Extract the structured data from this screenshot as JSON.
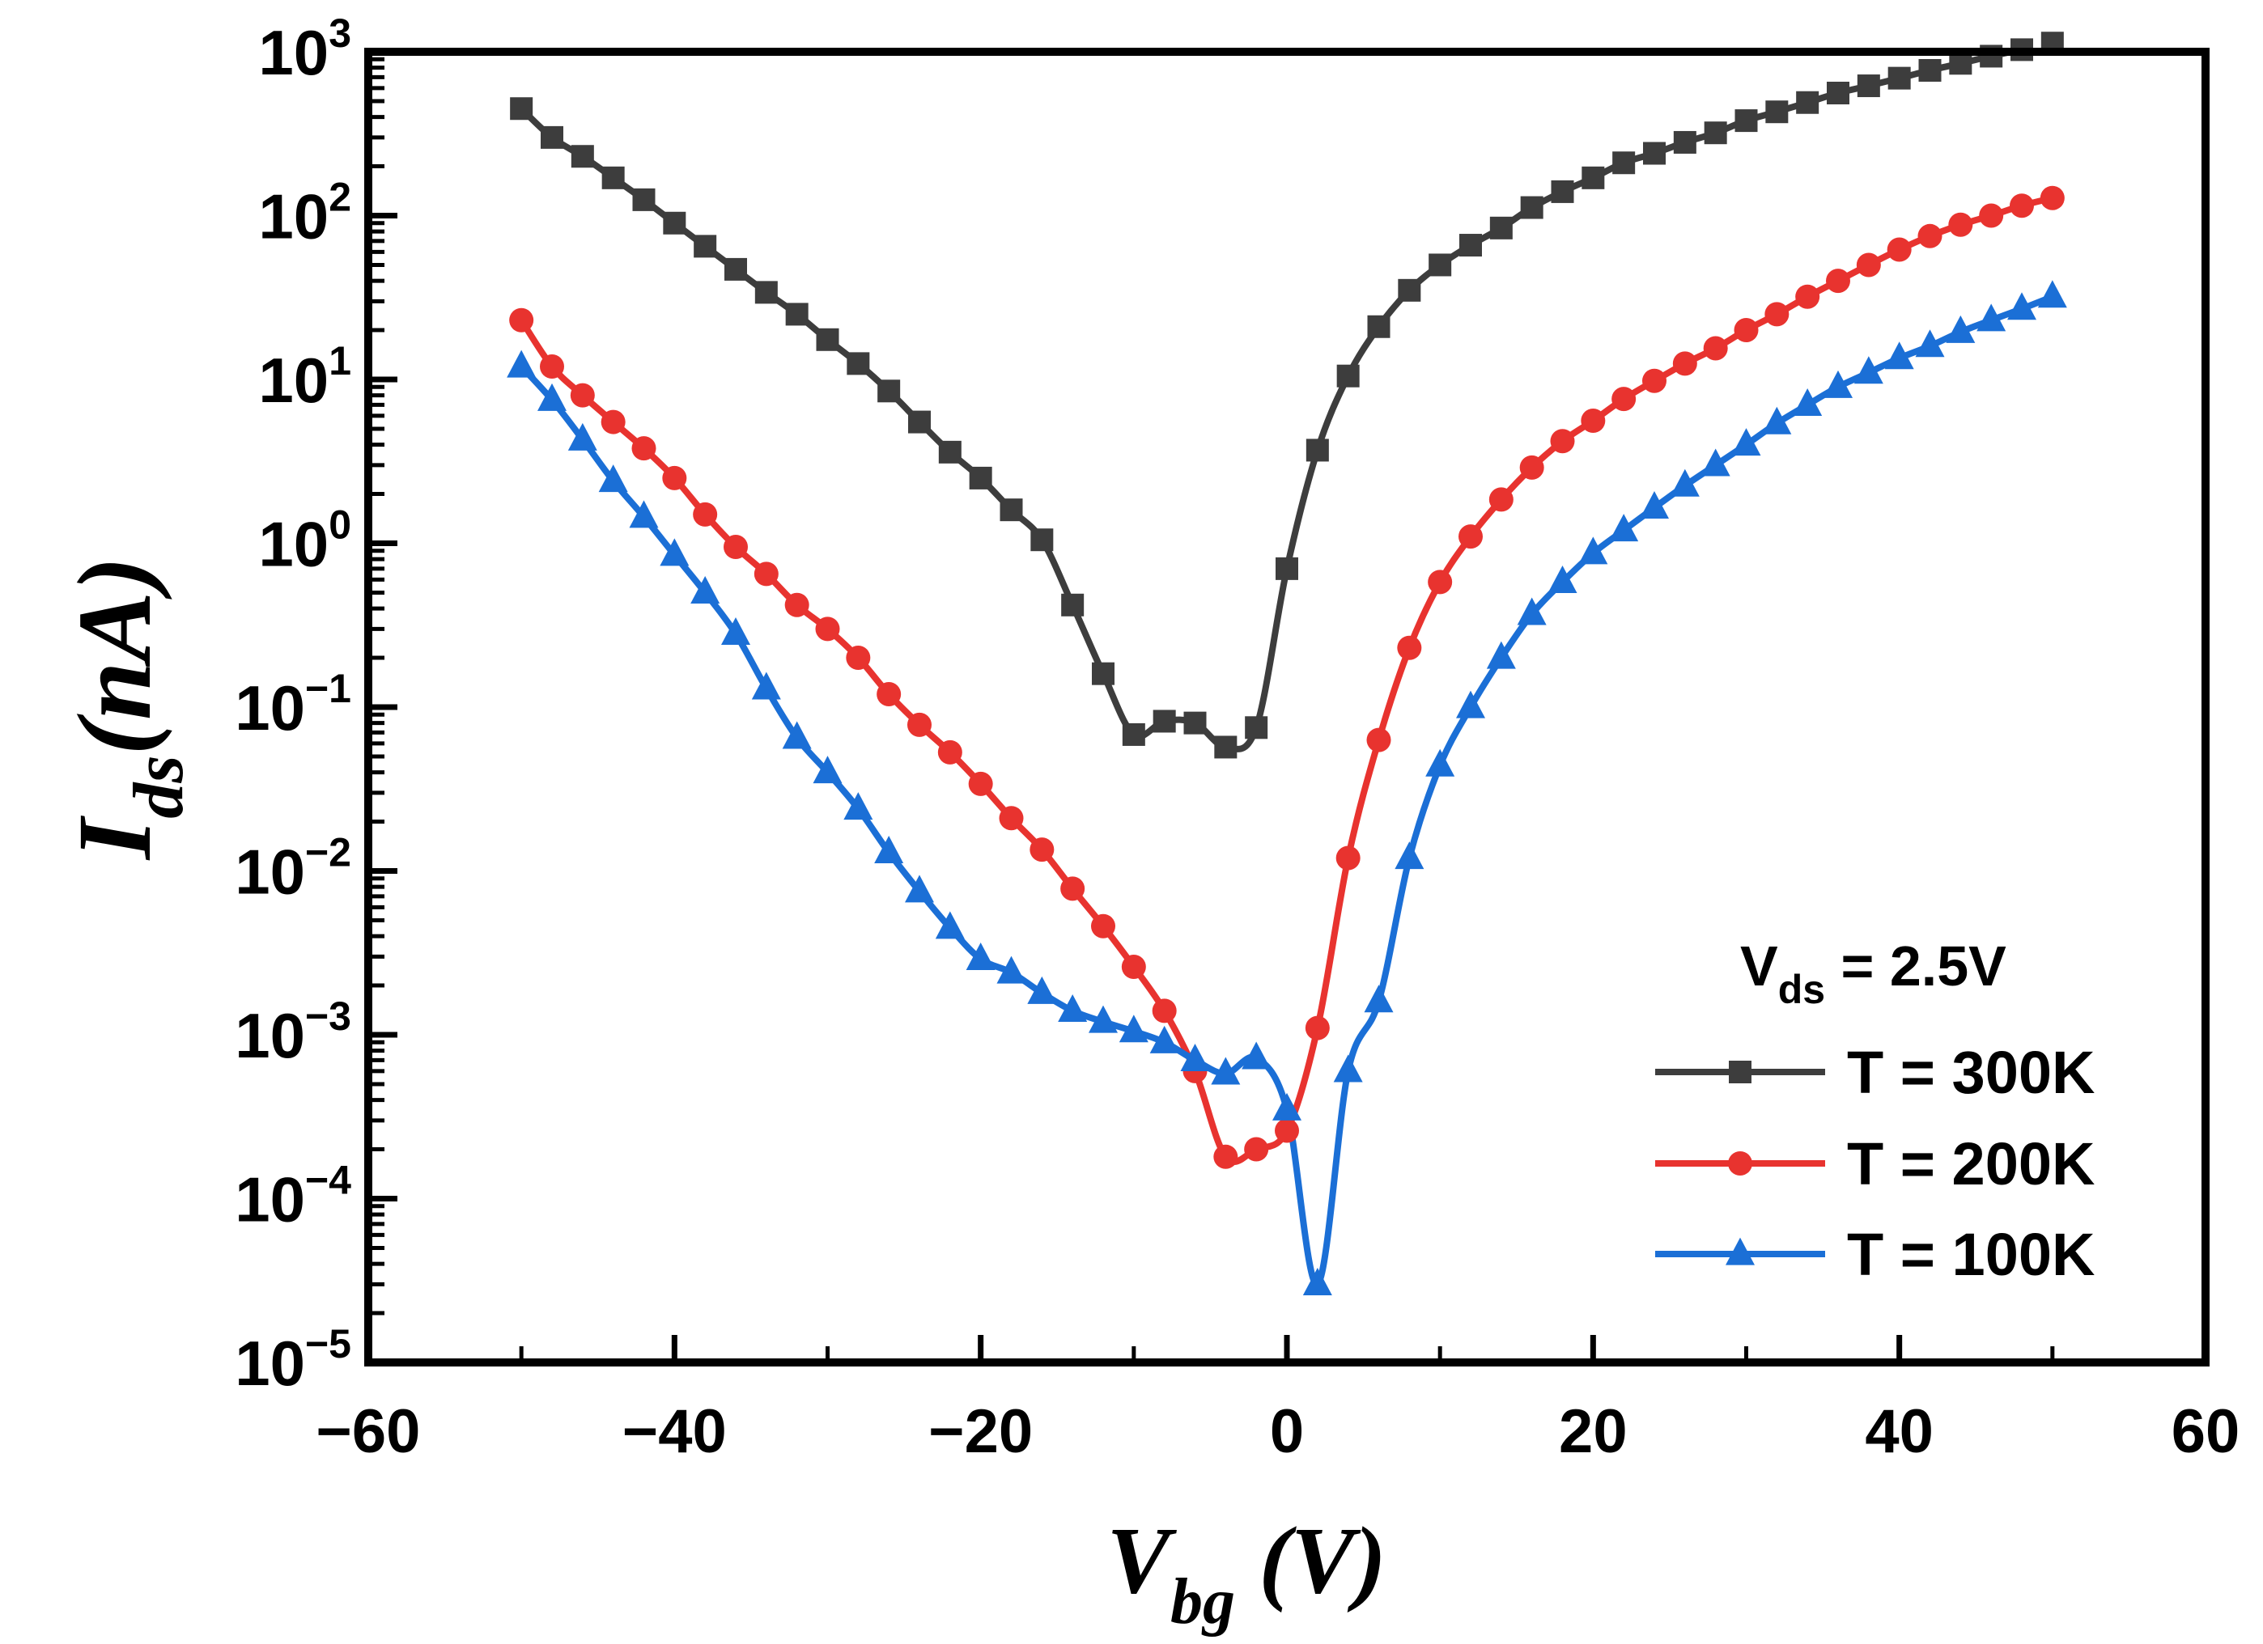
{
  "chart_data": {
    "type": "line",
    "title": "",
    "xlabel": {
      "main": "V",
      "sub": "bg",
      "unit": " (V)"
    },
    "ylabel": {
      "main": "I",
      "sub": "ds",
      "unit": "(nA)"
    },
    "xlim": [
      -60,
      60
    ],
    "ylim_log10": [
      -5,
      3
    ],
    "y_scale": "log",
    "x_ticks": [
      {
        "value": -60,
        "label": "−60"
      },
      {
        "value": -40,
        "label": "−40"
      },
      {
        "value": -20,
        "label": "−20"
      },
      {
        "value": 0,
        "label": "0"
      },
      {
        "value": 20,
        "label": "20"
      },
      {
        "value": 40,
        "label": "40"
      },
      {
        "value": 60,
        "label": "60"
      }
    ],
    "y_ticks": [
      {
        "exp": -5,
        "base": "10",
        "sup": "−5"
      },
      {
        "exp": -4,
        "base": "10",
        "sup": "−4"
      },
      {
        "exp": -3,
        "base": "10",
        "sup": "−3"
      },
      {
        "exp": -2,
        "base": "10",
        "sup": "−2"
      },
      {
        "exp": -1,
        "base": "10",
        "sup": "−1"
      },
      {
        "exp": 0,
        "base": "10",
        "sup": "0"
      },
      {
        "exp": 1,
        "base": "10",
        "sup": "1"
      },
      {
        "exp": 2,
        "base": "10",
        "sup": "2"
      },
      {
        "exp": 3,
        "base": "10",
        "sup": "3"
      }
    ],
    "legend": {
      "position": "bottom-right",
      "title": {
        "main": "V",
        "sub": "ds",
        "rest": " = 2.5V"
      },
      "entries": [
        "T = 300K",
        "T = 200K",
        "T = 100K"
      ]
    },
    "series": [
      {
        "name": "T = 300K",
        "color": "#3d3d3d",
        "marker": "square",
        "x": [
          -50,
          -48,
          -46,
          -44,
          -42,
          -40,
          -38,
          -36,
          -34,
          -32,
          -30,
          -28,
          -26,
          -24,
          -22,
          -20,
          -18,
          -16,
          -14,
          -12,
          -10,
          -8,
          -6,
          -4,
          -2,
          0,
          2,
          4,
          6,
          8,
          10,
          12,
          14,
          16,
          18,
          20,
          22,
          24,
          26,
          28,
          30,
          32,
          34,
          36,
          38,
          40,
          42,
          44,
          46,
          48,
          50
        ],
        "y": [
          450,
          300,
          230,
          170,
          125,
          90,
          65,
          47,
          34,
          25,
          17.5,
          12.5,
          8.5,
          5.5,
          3.6,
          2.5,
          1.6,
          1.05,
          0.42,
          0.16,
          0.068,
          0.082,
          0.08,
          0.057,
          0.075,
          0.7,
          3.7,
          10.5,
          21,
          35,
          50,
          66,
          84,
          112,
          140,
          170,
          210,
          240,
          280,
          320,
          380,
          430,
          490,
          560,
          620,
          690,
          770,
          850,
          940,
          1030,
          1130
        ]
      },
      {
        "name": "T = 200K",
        "color": "#e8332f",
        "marker": "circle",
        "x": [
          -50,
          -48,
          -46,
          -44,
          -42,
          -40,
          -38,
          -36,
          -34,
          -32,
          -30,
          -28,
          -26,
          -24,
          -22,
          -20,
          -18,
          -16,
          -14,
          -12,
          -10,
          -8,
          -6,
          -4,
          -2,
          0,
          2,
          4,
          6,
          8,
          10,
          12,
          14,
          16,
          18,
          20,
          22,
          24,
          26,
          28,
          30,
          32,
          34,
          36,
          38,
          40,
          42,
          44,
          46,
          48,
          50
        ],
        "y": [
          23,
          12,
          8,
          5.5,
          3.8,
          2.5,
          1.5,
          0.95,
          0.65,
          0.42,
          0.3,
          0.2,
          0.12,
          0.078,
          0.053,
          0.034,
          0.021,
          0.0135,
          0.0078,
          0.0046,
          0.0026,
          0.0014,
          0.0006,
          0.00018,
          0.0002,
          0.00026,
          0.0011,
          0.012,
          0.063,
          0.23,
          0.58,
          1.1,
          1.85,
          2.9,
          4.2,
          5.6,
          7.6,
          9.8,
          12.5,
          15.5,
          20,
          25,
          32,
          40,
          50,
          62,
          75,
          88,
          100,
          115,
          128
        ]
      },
      {
        "name": "T = 100K",
        "color": "#1b6fd6",
        "marker": "triangle",
        "x": [
          -50,
          -48,
          -46,
          -44,
          -42,
          -40,
          -38,
          -36,
          -34,
          -32,
          -30,
          -28,
          -26,
          -24,
          -22,
          -20,
          -18,
          -16,
          -14,
          -12,
          -10,
          -8,
          -6,
          -4,
          -2,
          0,
          2,
          4,
          6,
          8,
          10,
          12,
          14,
          16,
          18,
          20,
          22,
          24,
          26,
          28,
          30,
          32,
          34,
          36,
          38,
          40,
          42,
          44,
          46,
          48,
          50
        ],
        "y": [
          12,
          7.5,
          4.3,
          2.4,
          1.45,
          0.85,
          0.5,
          0.28,
          0.13,
          0.065,
          0.04,
          0.024,
          0.013,
          0.0075,
          0.0045,
          0.0029,
          0.0024,
          0.0018,
          0.0014,
          0.0012,
          0.00105,
          0.0009,
          0.0007,
          0.00058,
          0.00072,
          0.00035,
          3e-05,
          0.0006,
          0.0016,
          0.012,
          0.044,
          0.1,
          0.2,
          0.37,
          0.58,
          0.87,
          1.2,
          1.65,
          2.25,
          3,
          4,
          5.4,
          7,
          9,
          11,
          13.5,
          16,
          19.5,
          23,
          27,
          32
        ]
      }
    ]
  }
}
